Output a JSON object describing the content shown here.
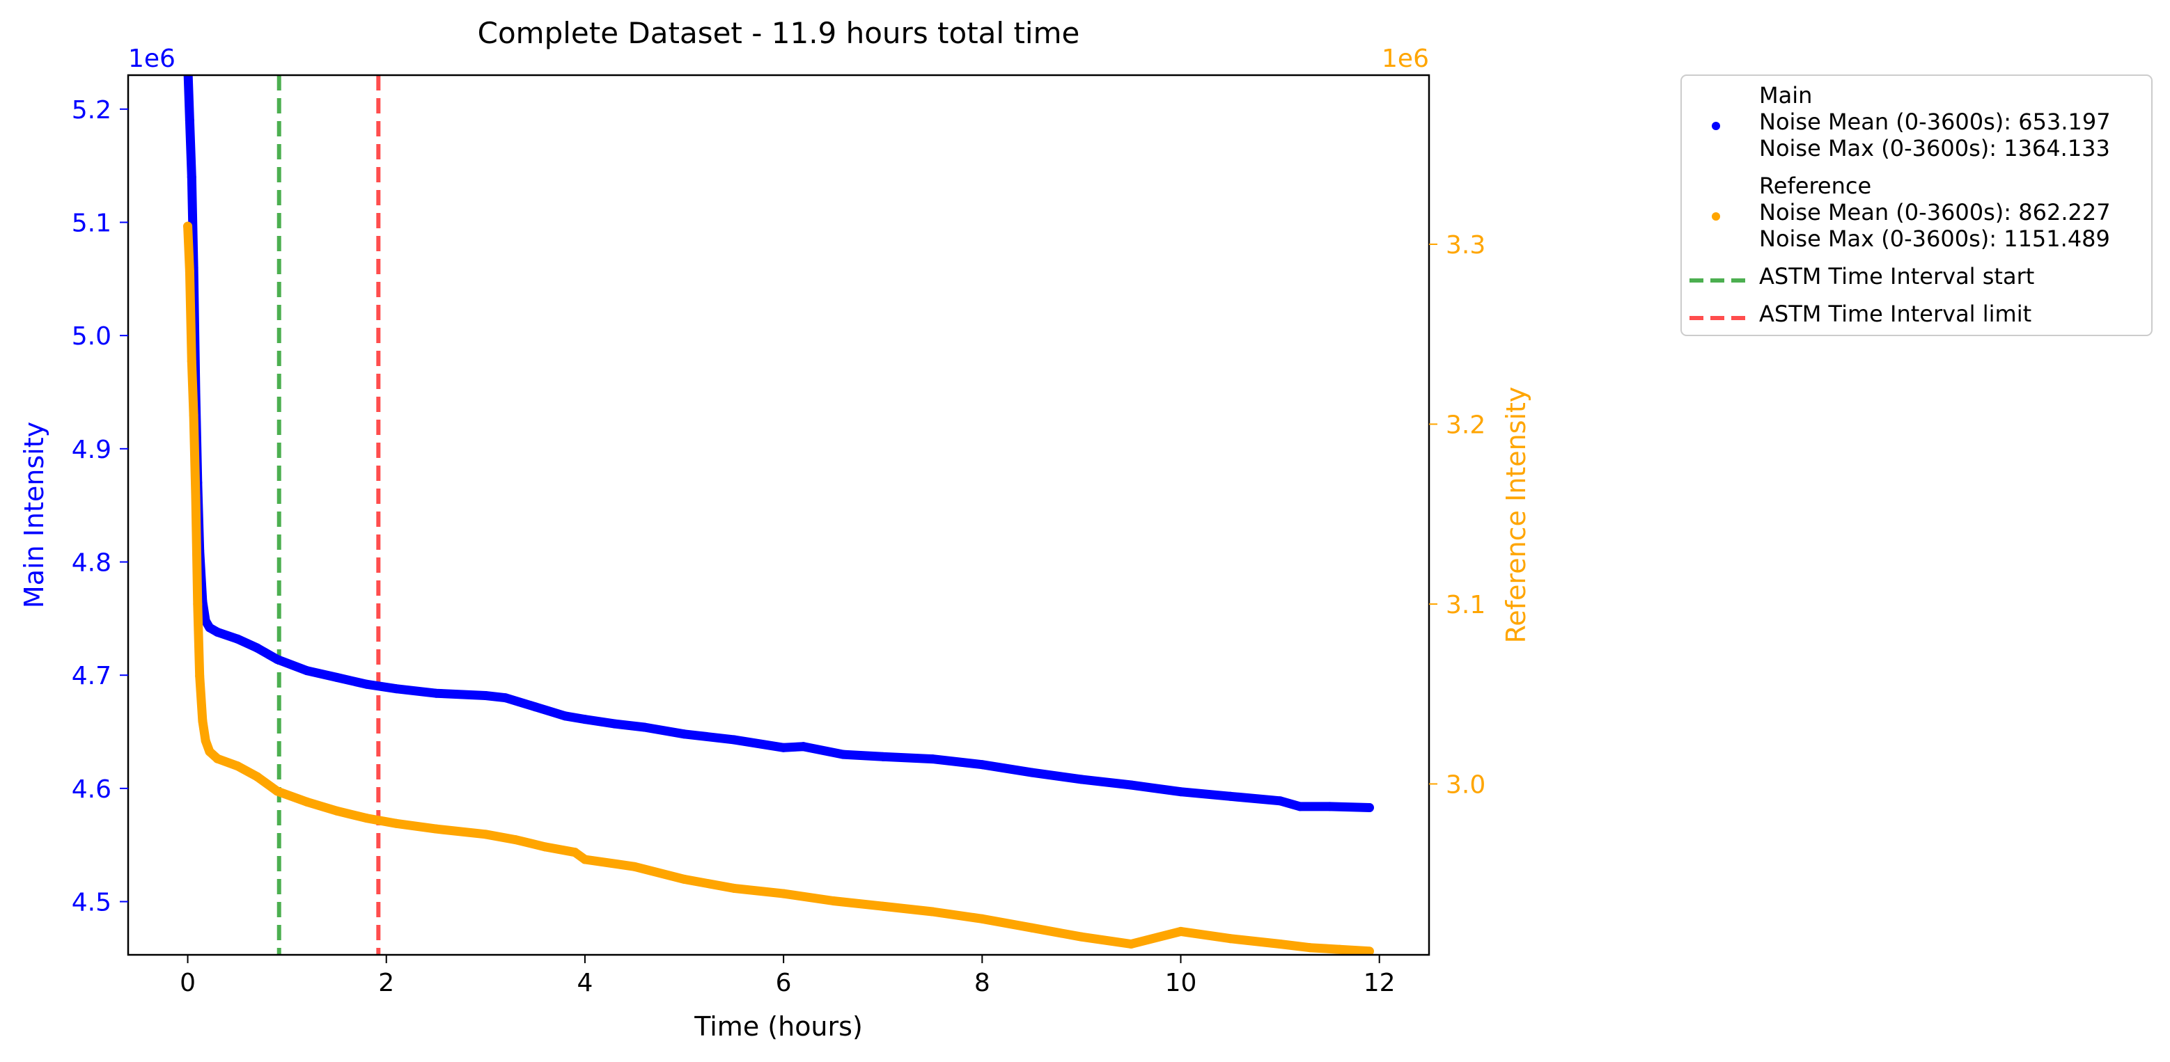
{
  "chart_data": {
    "type": "scatter",
    "title": "Complete Dataset - 11.9 hours total time",
    "xlabel": "Time (hours)",
    "xlim": [
      -0.6,
      12.5
    ],
    "x_ticks": [
      0,
      2,
      4,
      6,
      8,
      10,
      12
    ],
    "x_tick_labels": [
      "0",
      "2",
      "4",
      "6",
      "8",
      "10",
      "12"
    ],
    "y_left": {
      "label": "Main Intensity",
      "scale_label": "1e6",
      "color": "#0000ff",
      "ylim": [
        4.453,
        5.23
      ],
      "ticks": [
        4.5,
        4.6,
        4.7,
        4.8,
        4.9,
        5.0,
        5.1,
        5.2
      ],
      "tick_labels": [
        "4.5",
        "4.6",
        "4.7",
        "4.8",
        "4.9",
        "5.0",
        "5.1",
        "5.2"
      ]
    },
    "y_right": {
      "label": "Reference Intensity",
      "scale_label": "1e6",
      "color": "#ffa500",
      "ylim": [
        2.905,
        3.394
      ],
      "ticks": [
        3.0,
        3.1,
        3.2,
        3.3
      ],
      "tick_labels": [
        "3.0",
        "3.1",
        "3.2",
        "3.3"
      ]
    },
    "series": [
      {
        "name": "Main",
        "axis": "left",
        "color": "#0000ff",
        "x": [
          0.0,
          0.02,
          0.04,
          0.06,
          0.08,
          0.1,
          0.12,
          0.15,
          0.18,
          0.22,
          0.3,
          0.5,
          0.7,
          0.9,
          1.2,
          1.5,
          1.8,
          2.1,
          2.5,
          3.0,
          3.2,
          3.5,
          3.8,
          4.0,
          4.3,
          4.6,
          5.0,
          5.5,
          6.0,
          6.2,
          6.6,
          7.0,
          7.5,
          8.0,
          8.5,
          9.0,
          9.5,
          10.0,
          10.5,
          11.0,
          11.2,
          11.5,
          11.9
        ],
        "y": [
          5.24,
          5.19,
          5.14,
          5.06,
          4.95,
          4.87,
          4.81,
          4.765,
          4.748,
          4.742,
          4.738,
          4.732,
          4.724,
          4.714,
          4.704,
          4.698,
          4.692,
          4.688,
          4.684,
          4.682,
          4.68,
          4.672,
          4.664,
          4.661,
          4.657,
          4.654,
          4.648,
          4.643,
          4.636,
          4.637,
          4.63,
          4.628,
          4.626,
          4.621,
          4.614,
          4.608,
          4.603,
          4.597,
          4.593,
          4.589,
          4.584,
          4.584,
          4.583
        ]
      },
      {
        "name": "Reference",
        "axis": "right",
        "color": "#ffa500",
        "x": [
          0.0,
          0.02,
          0.04,
          0.06,
          0.08,
          0.1,
          0.12,
          0.15,
          0.18,
          0.22,
          0.3,
          0.5,
          0.7,
          0.9,
          1.2,
          1.5,
          1.8,
          2.1,
          2.5,
          3.0,
          3.3,
          3.6,
          3.9,
          4.0,
          4.5,
          5.0,
          5.5,
          6.0,
          6.5,
          7.0,
          7.5,
          8.0,
          8.5,
          9.0,
          9.5,
          10.0,
          10.5,
          11.0,
          11.3,
          11.6,
          11.9
        ],
        "y": [
          3.31,
          3.285,
          3.235,
          3.205,
          3.16,
          3.1,
          3.06,
          3.035,
          3.024,
          3.018,
          3.014,
          3.01,
          3.004,
          2.996,
          2.99,
          2.985,
          2.981,
          2.978,
          2.975,
          2.972,
          2.969,
          2.965,
          2.962,
          2.958,
          2.954,
          2.947,
          2.942,
          2.939,
          2.935,
          2.932,
          2.929,
          2.925,
          2.92,
          2.915,
          2.911,
          2.918,
          2.914,
          2.911,
          2.909,
          2.908,
          2.907
        ]
      }
    ],
    "vlines": [
      {
        "x": 0.92,
        "color": "#4caf50",
        "style": "dashed"
      },
      {
        "x": 1.92,
        "color": "#ff4d4d",
        "style": "dashed"
      }
    ],
    "legend": {
      "placement": "outside-top-right",
      "entries": [
        {
          "kind": "marker",
          "color": "#0000ff",
          "lines": [
            "Main",
            "Noise Mean (0-3600s): 653.197",
            "Noise Max (0-3600s): 1364.133"
          ]
        },
        {
          "kind": "marker",
          "color": "#ffa500",
          "lines": [
            "Reference",
            "Noise Mean (0-3600s): 862.227",
            "Noise Max (0-3600s): 1151.489"
          ]
        },
        {
          "kind": "dashed-line",
          "color": "#4caf50",
          "lines": [
            "ASTM Time Interval start"
          ]
        },
        {
          "kind": "dashed-line",
          "color": "#ff4d4d",
          "lines": [
            "ASTM Time Interval limit"
          ]
        }
      ]
    }
  }
}
